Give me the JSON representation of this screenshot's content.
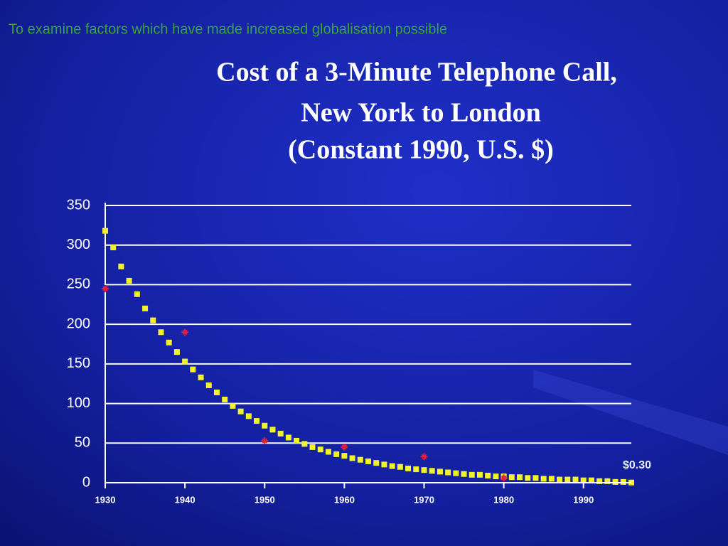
{
  "header": {
    "text": "To examine factors which have made increased globalisation possible"
  },
  "chart_data": {
    "type": "scatter",
    "title": "Cost of a 3-Minute Telephone Call,",
    "subtitle": "New York to London",
    "note": "(Constant 1990, U.S. $)",
    "xlim": [
      1930,
      1996
    ],
    "xticks": [
      1930,
      1940,
      1950,
      1960,
      1970,
      1980,
      1990
    ],
    "ylim": [
      0,
      350
    ],
    "yticks": [
      0,
      50,
      100,
      150,
      200,
      250,
      300,
      350
    ],
    "grid": true,
    "series": [
      {
        "color": "#f2f22a",
        "marker": "square",
        "x": [
          1930,
          1931,
          1932,
          1933,
          1934,
          1935,
          1936,
          1937,
          1938,
          1939,
          1940,
          1941,
          1942,
          1943,
          1944,
          1945,
          1946,
          1947,
          1948,
          1949,
          1950,
          1951,
          1952,
          1953,
          1954,
          1955,
          1956,
          1957,
          1958,
          1959,
          1960,
          1961,
          1962,
          1963,
          1964,
          1965,
          1966,
          1967,
          1968,
          1969,
          1970,
          1971,
          1972,
          1973,
          1974,
          1975,
          1976,
          1977,
          1978,
          1979,
          1980,
          1981,
          1982,
          1983,
          1984,
          1985,
          1986,
          1987,
          1988,
          1989,
          1990,
          1991,
          1992,
          1993,
          1994,
          1995,
          1996
        ],
        "values": [
          318,
          297,
          273,
          255,
          238,
          220,
          205,
          190,
          177,
          165,
          153,
          143,
          133,
          123,
          114,
          105,
          97,
          90,
          84,
          78,
          72,
          67,
          62,
          57,
          53,
          49,
          45,
          42,
          39,
          36,
          34,
          31,
          29,
          27,
          25,
          23,
          21,
          20,
          18,
          17,
          16,
          15,
          14,
          13,
          12,
          11,
          10,
          10,
          9,
          8,
          8,
          7,
          7,
          6,
          6,
          5,
          5,
          4,
          4,
          4,
          3,
          3,
          2,
          2,
          1,
          1,
          0.3
        ],
        "value_labels": [
          null,
          null,
          null,
          null,
          null,
          null,
          null,
          null,
          null,
          null,
          null,
          null,
          null,
          null,
          null,
          null,
          null,
          null,
          null,
          null,
          null,
          null,
          null,
          null,
          null,
          null,
          null,
          null,
          null,
          null,
          null,
          null,
          null,
          null,
          null,
          null,
          null,
          null,
          null,
          null,
          null,
          null,
          null,
          null,
          null,
          null,
          null,
          null,
          null,
          null,
          null,
          null,
          null,
          null,
          null,
          null,
          null,
          null,
          null,
          null,
          null,
          null,
          null,
          null,
          null,
          null,
          "$0.30"
        ]
      },
      {
        "color": "#e0203a",
        "marker": "star",
        "x": [
          1930,
          1940,
          1950,
          1960,
          1970,
          1980
        ],
        "values": [
          245,
          190,
          53,
          45,
          33,
          6
        ]
      }
    ]
  }
}
